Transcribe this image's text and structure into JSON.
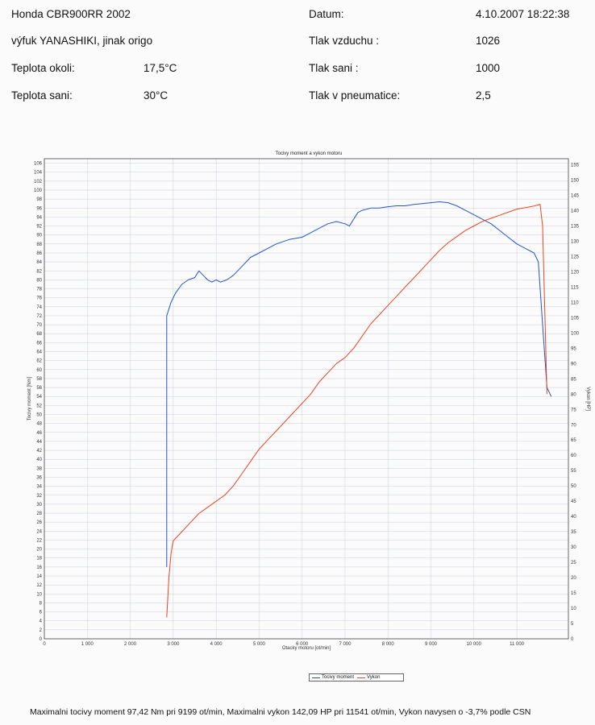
{
  "header": {
    "vehicle": "Honda CBR900RR 2002",
    "note": "výfuk YANASHIKI, jinak origo",
    "ambient_temp_label": "Teplota okoli:",
    "ambient_temp_value": "17,5°C",
    "intake_temp_label": "Teplota sani:",
    "intake_temp_value": "30°C",
    "date_label": "Datum:",
    "date_value": "4.10.2007 18:22:38",
    "air_pressure_label": "Tlak vzduchu :",
    "air_pressure_value": "1026",
    "intake_pressure_label": "Tlak sani :",
    "intake_pressure_value": "1000",
    "tire_pressure_label": "Tlak v pneumatice:",
    "tire_pressure_value": "2,5"
  },
  "chart_data": {
    "type": "line",
    "title": "Tocivy moment a vykon motoru",
    "xlabel": "Otacky motoru [ot/min]",
    "ylabel": "Tocivy moment [Nm]",
    "y2label": "Vykon [HP]",
    "xlim": [
      0,
      12200
    ],
    "ylim": [
      0,
      107
    ],
    "y2lim": [
      0,
      157
    ],
    "x_ticks": [
      0,
      1000,
      2000,
      3000,
      4000,
      5000,
      6000,
      7000,
      8000,
      9000,
      10000,
      11000
    ],
    "x_tick_labels": [
      "0",
      "1 000",
      "2 000",
      "3 000",
      "4 000",
      "5 000",
      "6 000",
      "7 000",
      "8 000",
      "9 000",
      "10 000",
      "11 000"
    ],
    "y_ticks": [
      0,
      2,
      4,
      6,
      8,
      10,
      12,
      14,
      16,
      18,
      20,
      22,
      24,
      26,
      28,
      30,
      32,
      34,
      36,
      38,
      40,
      42,
      44,
      46,
      48,
      50,
      52,
      54,
      56,
      58,
      60,
      62,
      64,
      66,
      68,
      70,
      72,
      74,
      76,
      78,
      80,
      82,
      84,
      86,
      88,
      90,
      92,
      94,
      96,
      98,
      100,
      102,
      104,
      106
    ],
    "y2_ticks": [
      0,
      5,
      10,
      15,
      20,
      25,
      30,
      35,
      40,
      45,
      50,
      55,
      60,
      65,
      70,
      75,
      80,
      85,
      90,
      95,
      100,
      105,
      110,
      115,
      120,
      125,
      130,
      135,
      140,
      145,
      150,
      155
    ],
    "grid": true,
    "legend_position": "bottom-center",
    "series": [
      {
        "name": "Tocivy moment",
        "axis": "left",
        "color": "#2255cc",
        "x": [
          2850,
          2850,
          2950,
          3050,
          3200,
          3350,
          3500,
          3600,
          3700,
          3800,
          3900,
          4000,
          4100,
          4250,
          4400,
          4600,
          4800,
          5000,
          5200,
          5400,
          5700,
          6000,
          6200,
          6400,
          6600,
          6800,
          7000,
          7100,
          7200,
          7300,
          7400,
          7600,
          7800,
          8000,
          8200,
          8400,
          8600,
          8800,
          9000,
          9200,
          9400,
          9600,
          9800,
          10000,
          10200,
          10400,
          10600,
          10800,
          11000,
          11200,
          11400,
          11500,
          11600,
          11700,
          11800
        ],
        "y": [
          16,
          72,
          75,
          77,
          79,
          80,
          80.5,
          82,
          81,
          80,
          79.5,
          80,
          79.5,
          80,
          81,
          83,
          85,
          86,
          87,
          88,
          89,
          89.5,
          90.5,
          91.5,
          92.5,
          93,
          92.5,
          92,
          93.5,
          95,
          95.5,
          96,
          96,
          96.3,
          96.5,
          96.5,
          96.8,
          97,
          97.2,
          97.4,
          97.2,
          96.5,
          95.5,
          94.5,
          93.5,
          92.5,
          91,
          89.5,
          88,
          87,
          86,
          84,
          70,
          56,
          54
        ]
      },
      {
        "name": "Vykon",
        "axis": "right",
        "color": "#ee4422",
        "x": [
          2850,
          2900,
          2950,
          3000,
          3200,
          3400,
          3600,
          3800,
          4000,
          4200,
          4400,
          4600,
          4800,
          5000,
          5200,
          5400,
          5600,
          5800,
          6000,
          6200,
          6400,
          6600,
          6800,
          7000,
          7200,
          7400,
          7600,
          7800,
          8000,
          8200,
          8400,
          8600,
          8800,
          9000,
          9200,
          9400,
          9600,
          9800,
          10000,
          10200,
          10400,
          10600,
          10800,
          11000,
          11200,
          11400,
          11541,
          11600,
          11700
        ],
        "y": [
          7,
          20,
          28,
          32,
          35,
          38,
          41,
          43,
          45,
          47,
          50,
          54,
          58,
          62,
          65,
          68,
          71,
          74,
          77,
          80,
          84,
          87,
          90,
          92,
          95,
          99,
          103,
          106,
          109,
          112,
          115,
          118,
          121,
          124,
          127,
          129.5,
          131.5,
          133.5,
          135,
          136.5,
          137.5,
          138.5,
          139.5,
          140.5,
          141,
          141.5,
          142.09,
          135,
          80
        ]
      }
    ],
    "footer": "Maximalni tocivy moment 97,42 Nm pri 9199 ot/min,  Maximalni vykon 142,09 HP pri 11541 ot/min,  Vykon navysen o -3,7% podle CSN"
  }
}
